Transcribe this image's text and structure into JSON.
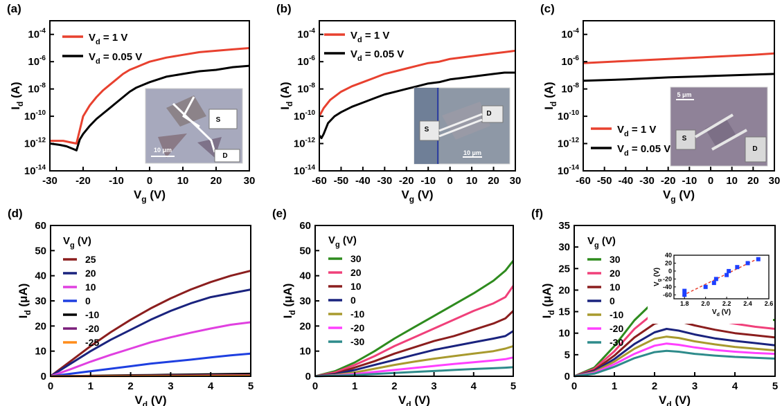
{
  "chart_data": [
    {
      "panel": "(a)",
      "type": "line",
      "yscale": "log",
      "xlabel": "Vg (V)",
      "ylabel": "Id (A)",
      "xlim": [
        -30,
        30
      ],
      "ylim_exp": [
        -14,
        -3
      ],
      "xticks": [
        "-30",
        "-20",
        "-10",
        "0",
        "10",
        "20",
        "30"
      ],
      "yticks": [
        "10-14",
        "10-12",
        "10-10",
        "10-8",
        "10-6",
        "10-4"
      ],
      "legend": [
        "Vd = 1 V",
        "Vd = 0.05 V"
      ],
      "legend_position": "top-left",
      "inset": {
        "labels": [
          "S",
          "D",
          "10 μm"
        ]
      },
      "series": [
        {
          "name": "Vd = 1 V",
          "color": "#e8412f",
          "x": [
            -30,
            -26,
            -24,
            -22,
            -21,
            -20,
            -18,
            -16,
            -14,
            -12,
            -10,
            -8,
            -6,
            -4,
            -2,
            0,
            5,
            10,
            15,
            20,
            25,
            30
          ],
          "y": [
            -11.8,
            -11.8,
            -11.9,
            -12.0,
            -11.0,
            -10.0,
            -9.2,
            -8.6,
            -8.1,
            -7.7,
            -7.3,
            -6.9,
            -6.6,
            -6.4,
            -6.2,
            -6.0,
            -5.7,
            -5.5,
            -5.3,
            -5.2,
            -5.1,
            -5.0
          ]
        },
        {
          "name": "Vd = 0.05 V",
          "color": "#000000",
          "x": [
            -30,
            -27,
            -25,
            -23,
            -22,
            -21,
            -20,
            -18,
            -16,
            -14,
            -12,
            -10,
            -8,
            -6,
            -4,
            -2,
            0,
            5,
            10,
            15,
            20,
            25,
            30
          ],
          "y": [
            -12.0,
            -12.1,
            -12.2,
            -12.4,
            -12.5,
            -11.7,
            -11.3,
            -10.7,
            -10.2,
            -9.8,
            -9.4,
            -9.0,
            -8.6,
            -8.2,
            -7.9,
            -7.7,
            -7.5,
            -7.1,
            -6.9,
            -6.7,
            -6.6,
            -6.4,
            -6.3
          ]
        }
      ]
    },
    {
      "panel": "(b)",
      "type": "line",
      "yscale": "log",
      "xlabel": "Vg (V)",
      "ylabel": "Id (A)",
      "xlim": [
        -60,
        30
      ],
      "ylim_exp": [
        -14,
        -3
      ],
      "xticks": [
        "-60",
        "-50",
        "-40",
        "-30",
        "-20",
        "-10",
        "0",
        "10",
        "20",
        "30"
      ],
      "yticks": [
        "10-14",
        "10-12",
        "10-10",
        "10-8",
        "10-6",
        "10-4"
      ],
      "legend": [
        "Vd = 1 V",
        "Vd = 0.05 V"
      ],
      "legend_position": "top-left",
      "inset": {
        "labels": [
          "S",
          "D",
          "10 μm"
        ]
      },
      "series": [
        {
          "name": "Vd = 1 V",
          "color": "#e8412f",
          "x": [
            -60,
            -58,
            -55,
            -50,
            -45,
            -40,
            -35,
            -30,
            -25,
            -20,
            -15,
            -10,
            -5,
            0,
            5,
            10,
            15,
            20,
            25,
            30
          ],
          "y": [
            -10.0,
            -9.4,
            -8.8,
            -8.2,
            -7.8,
            -7.5,
            -7.2,
            -6.9,
            -6.7,
            -6.5,
            -6.3,
            -6.1,
            -6.0,
            -5.8,
            -5.7,
            -5.6,
            -5.5,
            -5.4,
            -5.3,
            -5.2
          ]
        },
        {
          "name": "Vd = 0.05 V",
          "color": "#000000",
          "x": [
            -60,
            -59,
            -58,
            -56,
            -53,
            -50,
            -45,
            -40,
            -35,
            -30,
            -25,
            -20,
            -15,
            -10,
            -5,
            0,
            5,
            10,
            15,
            20,
            25,
            30
          ],
          "y": [
            -11.4,
            -11.6,
            -11.3,
            -10.5,
            -10.0,
            -9.7,
            -9.3,
            -9.0,
            -8.7,
            -8.4,
            -8.2,
            -8.0,
            -7.8,
            -7.6,
            -7.5,
            -7.3,
            -7.2,
            -7.1,
            -7.0,
            -6.9,
            -6.8,
            -6.8
          ]
        }
      ]
    },
    {
      "panel": "(c)",
      "type": "line",
      "yscale": "log",
      "xlabel": "Vg (V)",
      "ylabel": "Id (A)",
      "xlim": [
        -60,
        30
      ],
      "ylim_exp": [
        -14,
        -3
      ],
      "xticks": [
        "-60",
        "-50",
        "-40",
        "-30",
        "-20",
        "-10",
        "0",
        "10",
        "20",
        "30"
      ],
      "yticks": [
        "10-14",
        "10-12",
        "10-10",
        "10-8",
        "10-6",
        "10-4"
      ],
      "legend": [
        "Vd = 1 V",
        "Vd = 0.05 V"
      ],
      "legend_position": "bottom-left",
      "inset": {
        "labels": [
          "5 μm",
          "S",
          "D"
        ]
      },
      "series": [
        {
          "name": "Vd = 1 V",
          "color": "#e8412f",
          "x": [
            -60,
            -40,
            -20,
            0,
            20,
            30
          ],
          "y": [
            -6.1,
            -5.95,
            -5.8,
            -5.65,
            -5.5,
            -5.4
          ]
        },
        {
          "name": "Vd = 0.05 V",
          "color": "#000000",
          "x": [
            -60,
            -40,
            -20,
            0,
            20,
            30
          ],
          "y": [
            -7.4,
            -7.3,
            -7.15,
            -7.05,
            -6.95,
            -6.9
          ]
        }
      ]
    },
    {
      "panel": "(d)",
      "type": "line",
      "xlabel": "Vd (V)",
      "ylabel": "Id (μA)",
      "xlim": [
        0,
        5
      ],
      "ylim": [
        0,
        60
      ],
      "xticks": [
        "0",
        "1",
        "2",
        "3",
        "4",
        "5"
      ],
      "yticks": [
        "0",
        "10",
        "20",
        "30",
        "40",
        "50",
        "60"
      ],
      "legend_title": "Vg (V)",
      "legend_position": "top-left",
      "x": [
        0,
        0.5,
        1,
        1.5,
        2,
        2.5,
        3,
        3.5,
        4,
        4.5,
        5
      ],
      "series": [
        {
          "name": "25",
          "color": "#8b1e1e",
          "values": [
            0,
            6,
            12,
            17.5,
            22.5,
            27,
            31,
            34.5,
            37.5,
            40,
            42
          ]
        },
        {
          "name": "20",
          "color": "#1a237e",
          "values": [
            0,
            5,
            10,
            14.5,
            18.5,
            22.5,
            26,
            29,
            31.5,
            33,
            34.5
          ]
        },
        {
          "name": "10",
          "color": "#e040e0",
          "values": [
            0,
            2.8,
            5.8,
            8.5,
            11,
            13.5,
            15.5,
            17.3,
            19,
            20.5,
            21.5
          ]
        },
        {
          "name": "0",
          "color": "#1e3fe0",
          "values": [
            0,
            1,
            2,
            3,
            4,
            5,
            5.8,
            6.6,
            7.5,
            8.3,
            9
          ]
        },
        {
          "name": "-10",
          "color": "#000000",
          "values": [
            0,
            0.1,
            0.2,
            0.3,
            0.4,
            0.5,
            0.6,
            0.7,
            0.8,
            0.9,
            1
          ]
        },
        {
          "name": "-20",
          "color": "#7b1f7b",
          "values": [
            0,
            0.05,
            0.1,
            0.15,
            0.2,
            0.25,
            0.3,
            0.35,
            0.4,
            0.45,
            0.5
          ]
        },
        {
          "name": "-25",
          "color": "#ff8c1a",
          "values": [
            0,
            0.02,
            0.04,
            0.06,
            0.08,
            0.1,
            0.12,
            0.14,
            0.16,
            0.18,
            0.2
          ]
        }
      ]
    },
    {
      "panel": "(e)",
      "type": "line",
      "xlabel": "Vd (V)",
      "ylabel": "Id (μA)",
      "xlim": [
        0,
        5
      ],
      "ylim": [
        0,
        60
      ],
      "xticks": [
        "0",
        "1",
        "2",
        "3",
        "4",
        "5"
      ],
      "yticks": [
        "0",
        "10",
        "20",
        "30",
        "40",
        "50",
        "60"
      ],
      "legend_title": "Vg (V)",
      "legend_position": "top-left",
      "x": [
        0,
        0.5,
        1,
        1.5,
        2,
        2.5,
        3,
        3.5,
        4,
        4.5,
        4.8,
        5
      ],
      "series": [
        {
          "name": "30",
          "color": "#2e8b1e",
          "values": [
            0,
            2,
            5.5,
            10,
            15,
            19.5,
            24,
            28.5,
            33,
            38,
            42,
            46
          ]
        },
        {
          "name": "20",
          "color": "#f0407a",
          "values": [
            0,
            1.5,
            4.5,
            8,
            12,
            15.5,
            19,
            22.5,
            26,
            29,
            31.5,
            36
          ]
        },
        {
          "name": "10",
          "color": "#8b1e1e",
          "values": [
            0,
            1,
            3.5,
            6,
            9,
            11.5,
            14,
            16,
            18.5,
            21,
            23,
            26
          ]
        },
        {
          "name": "0",
          "color": "#1a237e",
          "values": [
            0,
            0.8,
            2.5,
            4.5,
            6.5,
            8.5,
            10.5,
            12,
            13.5,
            15,
            16,
            18
          ]
        },
        {
          "name": "-10",
          "color": "#a89a2e",
          "values": [
            0,
            0.5,
            1.5,
            3,
            4.5,
            5.8,
            7,
            8,
            9,
            10,
            11,
            12
          ]
        },
        {
          "name": "-20",
          "color": "#ff40ff",
          "values": [
            0,
            0.3,
            0.9,
            1.7,
            2.5,
            3.3,
            4.1,
            4.9,
            5.6,
            6.3,
            6.8,
            7.5
          ]
        },
        {
          "name": "-30",
          "color": "#2e8b8b",
          "values": [
            0,
            0.2,
            0.5,
            0.9,
            1.3,
            1.7,
            2.1,
            2.5,
            2.9,
            3.2,
            3.4,
            3.6
          ]
        }
      ]
    },
    {
      "panel": "(f)",
      "type": "line",
      "xlabel": "Vd (V)",
      "ylabel": "Id (μA)",
      "xlim": [
        0,
        5
      ],
      "ylim": [
        0,
        35
      ],
      "xticks": [
        "0",
        "1",
        "2",
        "3",
        "4",
        "5"
      ],
      "yticks": [
        "0",
        "5",
        "10",
        "15",
        "20",
        "25",
        "30",
        "35"
      ],
      "legend_title": "Vg (V)",
      "legend_position": "top-left",
      "x": [
        0,
        0.5,
        1,
        1.5,
        2,
        2.3,
        2.6,
        3,
        3.5,
        4,
        4.5,
        5
      ],
      "series": [
        {
          "name": "30",
          "color": "#2e8b1e",
          "values": [
            0,
            2,
            7,
            13,
            17.5,
            18.8,
            18.5,
            17,
            15.5,
            14.5,
            13.8,
            13
          ]
        },
        {
          "name": "20",
          "color": "#f0407a",
          "values": [
            0,
            1.7,
            5.8,
            11,
            14.8,
            15.8,
            15.5,
            14.3,
            13,
            12.2,
            11.5,
            11
          ]
        },
        {
          "name": "10",
          "color": "#8b1e1e",
          "values": [
            0,
            1.4,
            4.8,
            9,
            12.2,
            13,
            12.8,
            11.8,
            10.8,
            10,
            9.5,
            9
          ]
        },
        {
          "name": "0",
          "color": "#1a237e",
          "values": [
            0,
            1.2,
            4,
            7.5,
            10.2,
            11,
            10.6,
            9.7,
            8.8,
            8.2,
            7.7,
            7.2
          ]
        },
        {
          "name": "-10",
          "color": "#a89a2e",
          "values": [
            0,
            1,
            3.4,
            6.4,
            8.7,
            9.2,
            8.9,
            8.1,
            7.4,
            6.8,
            6.4,
            6
          ]
        },
        {
          "name": "-20",
          "color": "#ff40ff",
          "values": [
            0,
            0.8,
            2.8,
            5.2,
            7.1,
            7.6,
            7.3,
            6.7,
            6.1,
            5.7,
            5.4,
            5.2
          ]
        },
        {
          "name": "-30",
          "color": "#2e8b8b",
          "values": [
            0,
            0.6,
            2.2,
            4.2,
            5.6,
            5.9,
            5.7,
            5.2,
            4.8,
            4.5,
            4.3,
            4.1
          ]
        }
      ],
      "inset": {
        "type": "scatter",
        "xlabel": "Vd (V)",
        "ylabel": "Vg (V)",
        "xlim": [
          1.7,
          2.6
        ],
        "ylim": [
          -70,
          40
        ],
        "xticks": [
          "1.8",
          "2.0",
          "2.2",
          "2.4",
          "2.6"
        ],
        "yticks": [
          "-60",
          "-40",
          "-20",
          "0",
          "20",
          "40"
        ],
        "x": [
          1.8,
          1.8,
          2.0,
          2.08,
          2.1,
          2.2,
          2.22,
          2.3,
          2.4,
          2.5
        ],
        "y": [
          -60,
          -50,
          -40,
          -30,
          -20,
          -10,
          0,
          10,
          20,
          30
        ]
      }
    }
  ]
}
